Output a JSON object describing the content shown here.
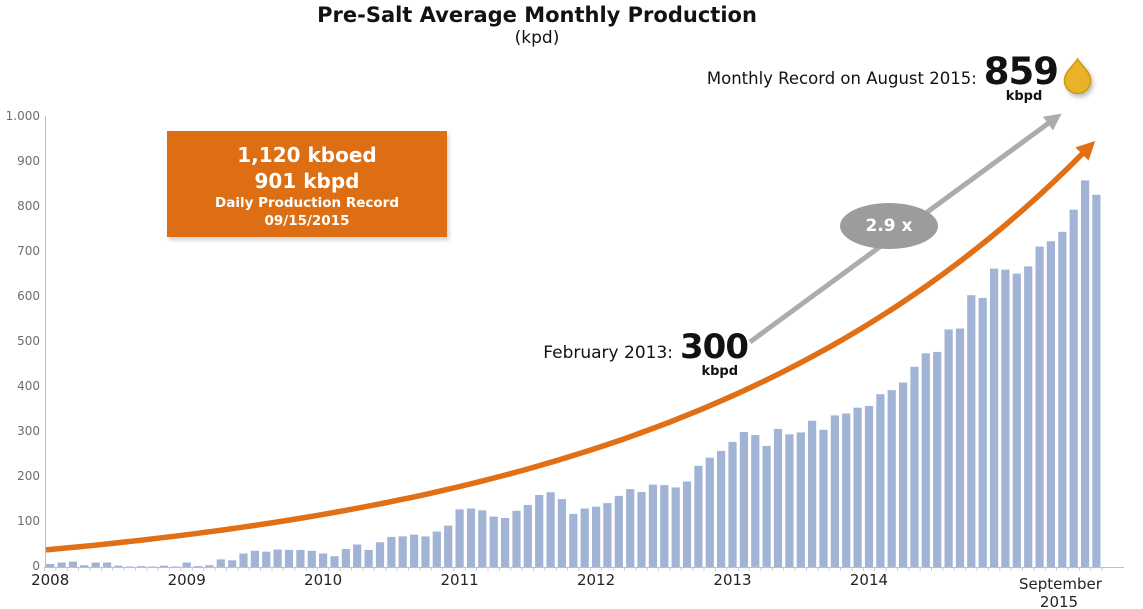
{
  "title": "Pre-Salt Average Monthly Production",
  "subtitle": "(kpd)",
  "record_box": {
    "value_boed": "1,120 kboed",
    "value_bpd": "901 kbpd",
    "caption": "Daily Production Record",
    "date": "09/15/2015"
  },
  "annotations": {
    "monthly_record_label": "Monthly Record on August 2015:",
    "monthly_record_value": "859",
    "monthly_record_unit": "kbpd",
    "feb2013_label": "February 2013:",
    "feb2013_value": "300",
    "feb2013_unit": "kbpd",
    "growth_multiplier": "2.9 x"
  },
  "chart_data": {
    "type": "bar",
    "title": "Pre-Salt Average Monthly Production",
    "unit": "kpd",
    "ylim": [
      0,
      1000
    ],
    "ytick_interval": 100,
    "ytick_labels": [
      "0",
      "100",
      "200",
      "300",
      "400",
      "500",
      "600",
      "700",
      "800",
      "900",
      "1.000"
    ],
    "xtick_labels": [
      "2008",
      "2009",
      "2010",
      "2011",
      "2012",
      "2013",
      "2014",
      "September 2015"
    ],
    "grid": false,
    "legend": null,
    "categories": [
      "2008-01",
      "2008-02",
      "2008-03",
      "2008-04",
      "2008-05",
      "2008-06",
      "2008-07",
      "2008-08",
      "2008-09",
      "2008-10",
      "2008-11",
      "2008-12",
      "2009-01",
      "2009-02",
      "2009-03",
      "2009-04",
      "2009-05",
      "2009-06",
      "2009-07",
      "2009-08",
      "2009-09",
      "2009-10",
      "2009-11",
      "2009-12",
      "2010-01",
      "2010-02",
      "2010-03",
      "2010-04",
      "2010-05",
      "2010-06",
      "2010-07",
      "2010-08",
      "2010-09",
      "2010-10",
      "2010-11",
      "2010-12",
      "2011-01",
      "2011-02",
      "2011-03",
      "2011-04",
      "2011-05",
      "2011-06",
      "2011-07",
      "2011-08",
      "2011-09",
      "2011-10",
      "2011-11",
      "2011-12",
      "2012-01",
      "2012-02",
      "2012-03",
      "2012-04",
      "2012-05",
      "2012-06",
      "2012-07",
      "2012-08",
      "2012-09",
      "2012-10",
      "2012-11",
      "2012-12",
      "2013-01",
      "2013-02",
      "2013-03",
      "2013-04",
      "2013-05",
      "2013-06",
      "2013-07",
      "2013-08",
      "2013-09",
      "2013-10",
      "2013-11",
      "2013-12",
      "2014-01",
      "2014-02",
      "2014-03",
      "2014-04",
      "2014-05",
      "2014-06",
      "2014-07",
      "2014-08",
      "2014-09",
      "2014-10",
      "2014-11",
      "2014-12",
      "2015-01",
      "2015-02",
      "2015-03",
      "2015-04",
      "2015-05",
      "2015-06",
      "2015-07",
      "2015-08",
      "2015-09"
    ],
    "series": [
      {
        "name": "Pre-salt average monthly production (kpd)",
        "values": [
          7,
          10,
          12,
          4,
          10,
          10,
          3,
          1,
          2,
          1,
          3,
          1,
          10,
          2,
          4,
          17,
          15,
          30,
          36,
          34,
          39,
          38,
          38,
          36,
          30,
          24,
          40,
          50,
          38,
          55,
          67,
          68,
          72,
          68,
          79,
          92,
          128,
          130,
          126,
          112,
          109,
          125,
          138,
          160,
          166,
          151,
          118,
          130,
          134,
          142,
          158,
          173,
          167,
          183,
          182,
          177,
          190,
          225,
          243,
          258,
          278,
          300,
          293,
          269,
          307,
          295,
          299,
          325,
          305,
          337,
          341,
          354,
          358,
          384,
          393,
          410,
          445,
          475,
          478,
          528,
          530,
          604,
          598,
          663,
          661,
          652,
          668,
          712,
          724,
          745,
          794,
          859,
          827
        ]
      }
    ],
    "annotations_data": {
      "feb_2013_kbpd": 300,
      "aug_2015_record_kbpd": 859,
      "daily_record_kboed": 1120,
      "daily_record_kbpd": 901,
      "growth_factor": "2.9 x"
    },
    "trend": {
      "type": "exponential_growth_arrow",
      "start_value": 38,
      "end_value": 940
    },
    "colors": {
      "bar": "#A2B4D6",
      "trend_arrow": "#E06F15",
      "growth_arrow": "#ACACAC",
      "ellipse": "#9C9C9C",
      "record_box_bg": "#DD6E14",
      "axis": "#BFBFBF",
      "month_tick": "#C8CEDA",
      "tick_label": "#6E6E6E",
      "droplet": "#E9B227",
      "droplet_stroke": "#CC9C10"
    }
  }
}
